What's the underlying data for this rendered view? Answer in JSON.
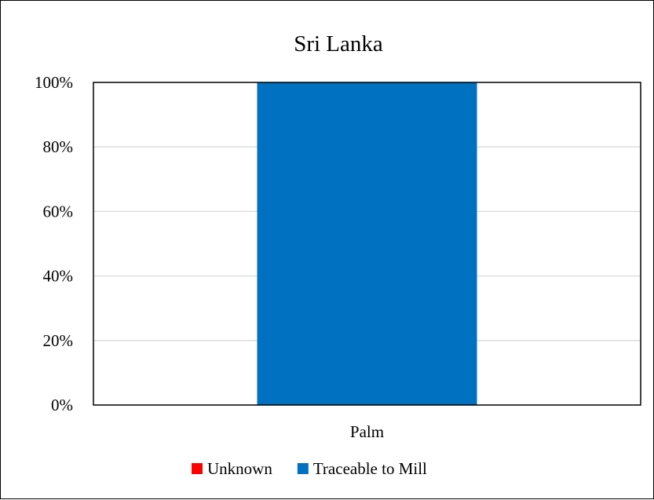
{
  "chart_data": {
    "type": "bar",
    "stacked": true,
    "title": "Sri Lanka",
    "categories": [
      "Palm"
    ],
    "series": [
      {
        "name": "Unknown",
        "values": [
          0
        ],
        "color": "#ff0000"
      },
      {
        "name": "Traceable to Mill",
        "values": [
          100
        ],
        "color": "#0070c0"
      }
    ],
    "y_tick_labels": [
      "0%",
      "20%",
      "40%",
      "60%",
      "80%",
      "100%"
    ],
    "y_ticks": [
      0,
      20,
      40,
      60,
      80,
      100
    ],
    "ylim": [
      0,
      100
    ],
    "grid": true,
    "legend_position": "bottom"
  }
}
